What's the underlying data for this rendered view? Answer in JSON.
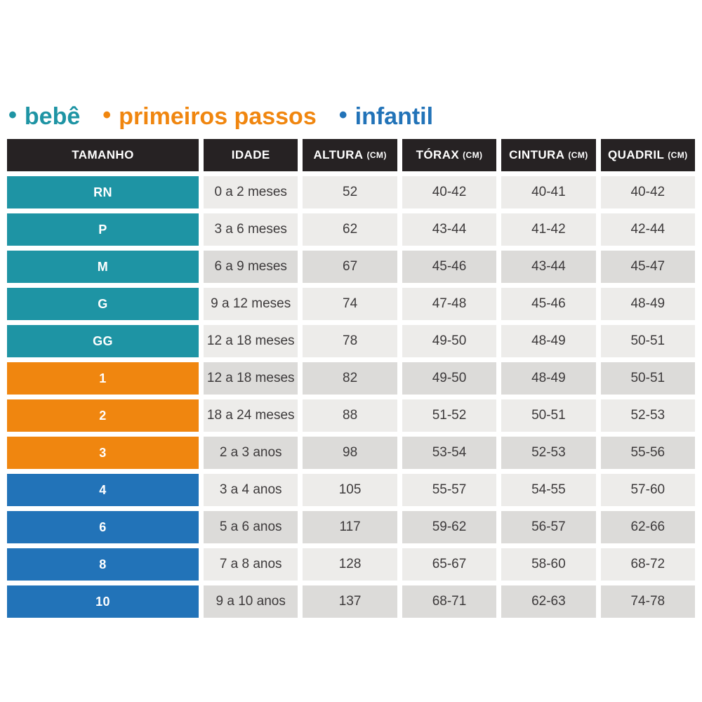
{
  "legend": {
    "items": [
      {
        "key": "bebe",
        "label": "bebê"
      },
      {
        "key": "primeiros_passos",
        "label": "primeiros passos"
      },
      {
        "key": "infantil",
        "label": "infantil"
      }
    ]
  },
  "chart_data": {
    "type": "table",
    "title": "",
    "columns": [
      {
        "key": "size",
        "label": "TAMANHO",
        "unit": ""
      },
      {
        "key": "age",
        "label": "IDADE",
        "unit": ""
      },
      {
        "key": "altura",
        "label": "ALTURA",
        "unit": "(CM)"
      },
      {
        "key": "torax",
        "label": "TÓRAX",
        "unit": "(CM)"
      },
      {
        "key": "cintura",
        "label": "CINTURA",
        "unit": "(CM)"
      },
      {
        "key": "quadril",
        "label": "QUADRIL",
        "unit": "(CM)"
      }
    ],
    "rows": [
      {
        "size": "RN",
        "group": "bebe",
        "age": "0 a 2 meses",
        "altura": "52",
        "torax": "40-42",
        "cintura": "40-41",
        "quadril": "40-42",
        "shaded": false
      },
      {
        "size": "P",
        "group": "bebe",
        "age": "3 a 6 meses",
        "altura": "62",
        "torax": "43-44",
        "cintura": "41-42",
        "quadril": "42-44",
        "shaded": false
      },
      {
        "size": "M",
        "group": "bebe",
        "age": "6 a 9 meses",
        "altura": "67",
        "torax": "45-46",
        "cintura": "43-44",
        "quadril": "45-47",
        "shaded": true
      },
      {
        "size": "G",
        "group": "bebe",
        "age": "9 a 12 meses",
        "altura": "74",
        "torax": "47-48",
        "cintura": "45-46",
        "quadril": "48-49",
        "shaded": false
      },
      {
        "size": "GG",
        "group": "bebe",
        "age": "12 a 18 meses",
        "altura": "78",
        "torax": "49-50",
        "cintura": "48-49",
        "quadril": "50-51",
        "shaded": false
      },
      {
        "size": "1",
        "group": "primeiros_passos",
        "age": "12 a 18 meses",
        "altura": "82",
        "torax": "49-50",
        "cintura": "48-49",
        "quadril": "50-51",
        "shaded": true
      },
      {
        "size": "2",
        "group": "primeiros_passos",
        "age": "18 a 24 meses",
        "altura": "88",
        "torax": "51-52",
        "cintura": "50-51",
        "quadril": "52-53",
        "shaded": false
      },
      {
        "size": "3",
        "group": "primeiros_passos",
        "age": "2 a 3 anos",
        "altura": "98",
        "torax": "53-54",
        "cintura": "52-53",
        "quadril": "55-56",
        "shaded": true
      },
      {
        "size": "4",
        "group": "infantil",
        "age": "3 a 4 anos",
        "altura": "105",
        "torax": "55-57",
        "cintura": "54-55",
        "quadril": "57-60",
        "shaded": false
      },
      {
        "size": "6",
        "group": "infantil",
        "age": "5 a 6 anos",
        "altura": "117",
        "torax": "59-62",
        "cintura": "56-57",
        "quadril": "62-66",
        "shaded": true
      },
      {
        "size": "8",
        "group": "infantil",
        "age": "7 a 8 anos",
        "altura": "128",
        "torax": "65-67",
        "cintura": "58-60",
        "quadril": "68-72",
        "shaded": false
      },
      {
        "size": "10",
        "group": "infantil",
        "age": "9 a 10 anos",
        "altura": "137",
        "torax": "68-71",
        "cintura": "62-63",
        "quadril": "74-78",
        "shaded": true
      }
    ]
  },
  "colors": {
    "bebe": "#1e94a4",
    "primeiros_passos": "#f0860f",
    "infantil": "#2273b8",
    "header_bg": "#262223",
    "header_text": "#ffffff",
    "cell_light": "#edecea",
    "cell_dark": "#dcdbd9",
    "cell_text": "#3d3a3b",
    "background": "#ffffff"
  }
}
